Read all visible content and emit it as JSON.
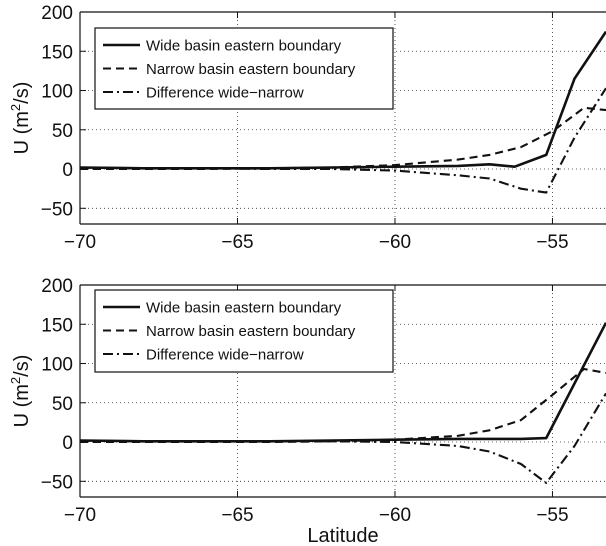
{
  "chart_data": [
    {
      "type": "line",
      "xlabel": "",
      "ylabel": "U (m²/s)",
      "ylabel_main": "U (m",
      "ylabel_sup": "2",
      "ylabel_tail": "/s)",
      "xlim": [
        -70,
        -53.3
      ],
      "ylim": [
        -70,
        200
      ],
      "xticks": [
        -70,
        -65,
        -60,
        -55
      ],
      "xtick_labels": [
        "−70",
        "−65",
        "−60",
        "−55"
      ],
      "yticks": [
        -50,
        0,
        50,
        100,
        150,
        200
      ],
      "ytick_labels": [
        "−50",
        "0",
        "50",
        "100",
        "150",
        "200"
      ],
      "grid": true,
      "legend_position": "top-left",
      "series": [
        {
          "name": "Wide basin eastern boundary",
          "style": "solid",
          "x": [
            -70,
            -68,
            -66,
            -64,
            -62,
            -60,
            -58,
            -57,
            -56.2,
            -55.2,
            -54.3,
            -53.3
          ],
          "y": [
            2,
            1,
            1,
            1,
            2,
            3,
            4,
            6,
            3,
            18,
            115,
            175
          ]
        },
        {
          "name": "Narrow basin eastern boundary",
          "style": "dashed",
          "x": [
            -70,
            -68,
            -66,
            -64,
            -62,
            -60,
            -58,
            -57,
            -56,
            -55,
            -54,
            -53.3
          ],
          "y": [
            0,
            0,
            0,
            1,
            2,
            5,
            12,
            18,
            28,
            48,
            78,
            75
          ]
        },
        {
          "name": "Difference wide−narrow",
          "style": "dashdot",
          "x": [
            -70,
            -68,
            -66,
            -64,
            -62,
            -60,
            -58,
            -57,
            -56,
            -55.2,
            -54.3,
            -53.3
          ],
          "y": [
            2,
            1,
            1,
            0,
            0,
            -2,
            -8,
            -12,
            -25,
            -30,
            40,
            103
          ]
        }
      ]
    },
    {
      "type": "line",
      "xlabel": "Latitude",
      "ylabel": "U (m²/s)",
      "ylabel_main": "U (m",
      "ylabel_sup": "2",
      "ylabel_tail": "/s)",
      "xlim": [
        -70,
        -53.3
      ],
      "ylim": [
        -70,
        200
      ],
      "xticks": [
        -70,
        -65,
        -60,
        -55
      ],
      "xtick_labels": [
        "−70",
        "−65",
        "−60",
        "−55"
      ],
      "yticks": [
        -50,
        0,
        50,
        100,
        150,
        200
      ],
      "ytick_labels": [
        "−50",
        "0",
        "50",
        "100",
        "150",
        "200"
      ],
      "grid": true,
      "legend_position": "top-left",
      "series": [
        {
          "name": "Wide basin eastern boundary",
          "style": "solid",
          "x": [
            -70,
            -68,
            -66,
            -64,
            -62,
            -60,
            -58,
            -56,
            -55.2,
            -53.3
          ],
          "y": [
            2,
            1,
            1,
            1,
            2,
            3,
            4,
            4,
            5,
            152
          ]
        },
        {
          "name": "Narrow basin eastern boundary",
          "style": "dashed",
          "x": [
            -70,
            -68,
            -66,
            -64,
            -62,
            -60,
            -58,
            -57,
            -56,
            -55,
            -54,
            -53.3
          ],
          "y": [
            0,
            0,
            0,
            0,
            1,
            3,
            8,
            15,
            28,
            60,
            93,
            88
          ]
        },
        {
          "name": "Difference wide−narrow",
          "style": "dashdot",
          "x": [
            -70,
            -68,
            -66,
            -64,
            -62,
            -60,
            -58,
            -57,
            -56,
            -55.2,
            -54.3,
            -53.3
          ],
          "y": [
            2,
            1,
            1,
            1,
            1,
            0,
            -5,
            -12,
            -28,
            -52,
            -5,
            62
          ]
        }
      ]
    }
  ]
}
